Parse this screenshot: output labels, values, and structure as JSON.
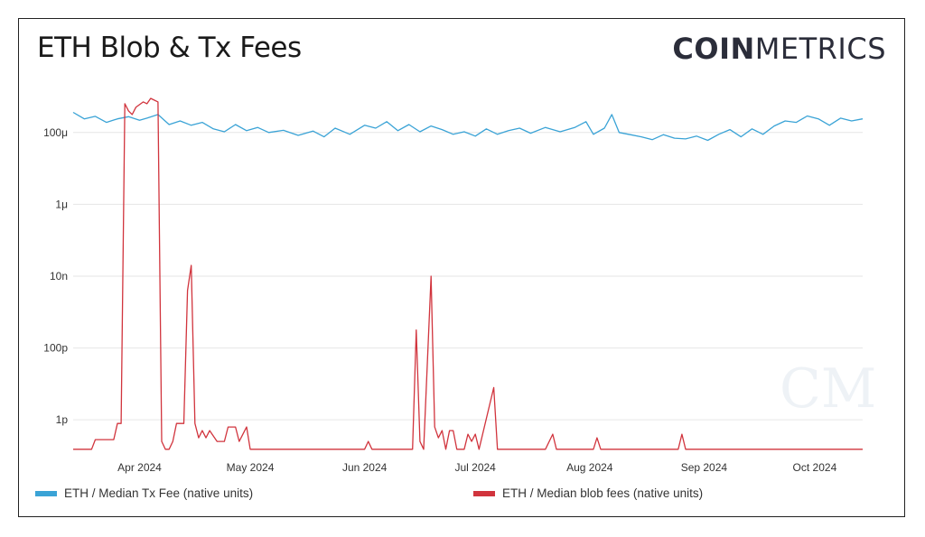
{
  "title": "ETH Blob & Tx Fees",
  "logo": {
    "bold": "COIN",
    "light": "METRICS",
    "watermark": "CM"
  },
  "colors": {
    "tx_fee": "#3aa3d6",
    "blob_fee": "#d1343d"
  },
  "chart_data": {
    "type": "line",
    "yscale": "log",
    "ylim_exp": [
      -12.9,
      -2.9
    ],
    "yticks": [
      {
        "exp": -4,
        "label": "100μ"
      },
      {
        "exp": -6,
        "label": "1μ"
      },
      {
        "exp": -8,
        "label": "10n"
      },
      {
        "exp": -10,
        "label": "100p"
      },
      {
        "exp": -12,
        "label": "1p"
      }
    ],
    "xlim": [
      "2024-03-14",
      "2024-10-14"
    ],
    "xticks": [
      {
        "date": "2024-04-01",
        "label": "Apr 2024"
      },
      {
        "date": "2024-05-01",
        "label": "May 2024"
      },
      {
        "date": "2024-06-01",
        "label": "Jun 2024"
      },
      {
        "date": "2024-07-01",
        "label": "Jul 2024"
      },
      {
        "date": "2024-08-01",
        "label": "Aug 2024"
      },
      {
        "date": "2024-09-01",
        "label": "Sep 2024"
      },
      {
        "date": "2024-10-01",
        "label": "Oct 2024"
      }
    ],
    "series": [
      {
        "name": "ETH / Median Tx Fee (native units)",
        "color": "#3aa3d6",
        "points": [
          [
            "2024-03-14",
            -3.44
          ],
          [
            "2024-03-17",
            -3.62
          ],
          [
            "2024-03-20",
            -3.55
          ],
          [
            "2024-03-23",
            -3.72
          ],
          [
            "2024-03-26",
            -3.62
          ],
          [
            "2024-03-29",
            -3.56
          ],
          [
            "2024-04-01",
            -3.66
          ],
          [
            "2024-04-03",
            -3.6
          ],
          [
            "2024-04-06",
            -3.5
          ],
          [
            "2024-04-09",
            -3.78
          ],
          [
            "2024-04-12",
            -3.68
          ],
          [
            "2024-04-15",
            -3.8
          ],
          [
            "2024-04-18",
            -3.72
          ],
          [
            "2024-04-21",
            -3.9
          ],
          [
            "2024-04-24",
            -3.98
          ],
          [
            "2024-04-27",
            -3.78
          ],
          [
            "2024-04-30",
            -3.95
          ],
          [
            "2024-05-03",
            -3.86
          ],
          [
            "2024-05-06",
            -4.0
          ],
          [
            "2024-05-10",
            -3.94
          ],
          [
            "2024-05-14",
            -4.08
          ],
          [
            "2024-05-18",
            -3.96
          ],
          [
            "2024-05-21",
            -4.12
          ],
          [
            "2024-05-24",
            -3.88
          ],
          [
            "2024-05-28",
            -4.05
          ],
          [
            "2024-06-01",
            -3.8
          ],
          [
            "2024-06-04",
            -3.88
          ],
          [
            "2024-06-07",
            -3.7
          ],
          [
            "2024-06-10",
            -3.95
          ],
          [
            "2024-06-13",
            -3.78
          ],
          [
            "2024-06-16",
            -3.98
          ],
          [
            "2024-06-19",
            -3.82
          ],
          [
            "2024-06-22",
            -3.92
          ],
          [
            "2024-06-25",
            -4.05
          ],
          [
            "2024-06-28",
            -3.98
          ],
          [
            "2024-07-01",
            -4.1
          ],
          [
            "2024-07-04",
            -3.9
          ],
          [
            "2024-07-07",
            -4.05
          ],
          [
            "2024-07-10",
            -3.95
          ],
          [
            "2024-07-13",
            -3.88
          ],
          [
            "2024-07-16",
            -4.02
          ],
          [
            "2024-07-20",
            -3.86
          ],
          [
            "2024-07-24",
            -3.98
          ],
          [
            "2024-07-28",
            -3.86
          ],
          [
            "2024-07-31",
            -3.7
          ],
          [
            "2024-08-02",
            -4.05
          ],
          [
            "2024-08-05",
            -3.88
          ],
          [
            "2024-08-07",
            -3.5
          ],
          [
            "2024-08-09",
            -4.0
          ],
          [
            "2024-08-12",
            -4.06
          ],
          [
            "2024-08-15",
            -4.12
          ],
          [
            "2024-08-18",
            -4.2
          ],
          [
            "2024-08-21",
            -4.06
          ],
          [
            "2024-08-24",
            -4.16
          ],
          [
            "2024-08-27",
            -4.18
          ],
          [
            "2024-08-30",
            -4.1
          ],
          [
            "2024-09-02",
            -4.22
          ],
          [
            "2024-09-05",
            -4.05
          ],
          [
            "2024-09-08",
            -3.92
          ],
          [
            "2024-09-11",
            -4.12
          ],
          [
            "2024-09-14",
            -3.9
          ],
          [
            "2024-09-17",
            -4.05
          ],
          [
            "2024-09-20",
            -3.82
          ],
          [
            "2024-09-23",
            -3.68
          ],
          [
            "2024-09-26",
            -3.72
          ],
          [
            "2024-09-29",
            -3.54
          ],
          [
            "2024-10-02",
            -3.62
          ],
          [
            "2024-10-05",
            -3.8
          ],
          [
            "2024-10-08",
            -3.6
          ],
          [
            "2024-10-11",
            -3.68
          ],
          [
            "2024-10-14",
            -3.62
          ]
        ]
      },
      {
        "name": "ETH / Median blob fees (native units)",
        "color": "#d1343d",
        "points": [
          [
            "2024-03-14",
            -12.82
          ],
          [
            "2024-03-19",
            -12.82
          ],
          [
            "2024-03-20",
            -12.55
          ],
          [
            "2024-03-25",
            -12.55
          ],
          [
            "2024-03-26",
            -12.1
          ],
          [
            "2024-03-27",
            -12.1
          ],
          [
            "2024-03-28",
            -3.2
          ],
          [
            "2024-03-29",
            -3.4
          ],
          [
            "2024-03-30",
            -3.5
          ],
          [
            "2024-03-31",
            -3.3
          ],
          [
            "2024-04-02",
            -3.15
          ],
          [
            "2024-04-03",
            -3.2
          ],
          [
            "2024-04-04",
            -3.05
          ],
          [
            "2024-04-05",
            -3.1
          ],
          [
            "2024-04-06",
            -3.15
          ],
          [
            "2024-04-07",
            -12.6
          ],
          [
            "2024-04-08",
            -12.82
          ],
          [
            "2024-04-09",
            -12.82
          ],
          [
            "2024-04-10",
            -12.6
          ],
          [
            "2024-04-11",
            -12.1
          ],
          [
            "2024-04-13",
            -12.1
          ],
          [
            "2024-04-14",
            -8.4
          ],
          [
            "2024-04-15",
            -7.7
          ],
          [
            "2024-04-16",
            -12.1
          ],
          [
            "2024-04-17",
            -12.5
          ],
          [
            "2024-04-18",
            -12.3
          ],
          [
            "2024-04-19",
            -12.5
          ],
          [
            "2024-04-20",
            -12.3
          ],
          [
            "2024-04-22",
            -12.6
          ],
          [
            "2024-04-24",
            -12.6
          ],
          [
            "2024-04-25",
            -12.2
          ],
          [
            "2024-04-27",
            -12.2
          ],
          [
            "2024-04-28",
            -12.6
          ],
          [
            "2024-04-30",
            -12.2
          ],
          [
            "2024-05-01",
            -12.82
          ],
          [
            "2024-06-01",
            -12.82
          ],
          [
            "2024-06-02",
            -12.6
          ],
          [
            "2024-06-03",
            -12.82
          ],
          [
            "2024-06-14",
            -12.82
          ],
          [
            "2024-06-15",
            -9.5
          ],
          [
            "2024-06-16",
            -12.6
          ],
          [
            "2024-06-17",
            -12.82
          ],
          [
            "2024-06-19",
            -8.0
          ],
          [
            "2024-06-20",
            -12.2
          ],
          [
            "2024-06-21",
            -12.5
          ],
          [
            "2024-06-22",
            -12.3
          ],
          [
            "2024-06-23",
            -12.82
          ],
          [
            "2024-06-24",
            -12.3
          ],
          [
            "2024-06-25",
            -12.3
          ],
          [
            "2024-06-26",
            -12.82
          ],
          [
            "2024-06-28",
            -12.82
          ],
          [
            "2024-06-29",
            -12.4
          ],
          [
            "2024-06-30",
            -12.6
          ],
          [
            "2024-07-01",
            -12.4
          ],
          [
            "2024-07-02",
            -12.82
          ],
          [
            "2024-07-06",
            -11.1
          ],
          [
            "2024-07-07",
            -12.82
          ],
          [
            "2024-07-20",
            -12.82
          ],
          [
            "2024-07-22",
            -12.4
          ],
          [
            "2024-07-23",
            -12.82
          ],
          [
            "2024-08-02",
            -12.82
          ],
          [
            "2024-08-03",
            -12.5
          ],
          [
            "2024-08-04",
            -12.82
          ],
          [
            "2024-08-25",
            -12.82
          ],
          [
            "2024-08-26",
            -12.4
          ],
          [
            "2024-08-27",
            -12.82
          ],
          [
            "2024-10-14",
            -12.82
          ]
        ]
      }
    ]
  }
}
